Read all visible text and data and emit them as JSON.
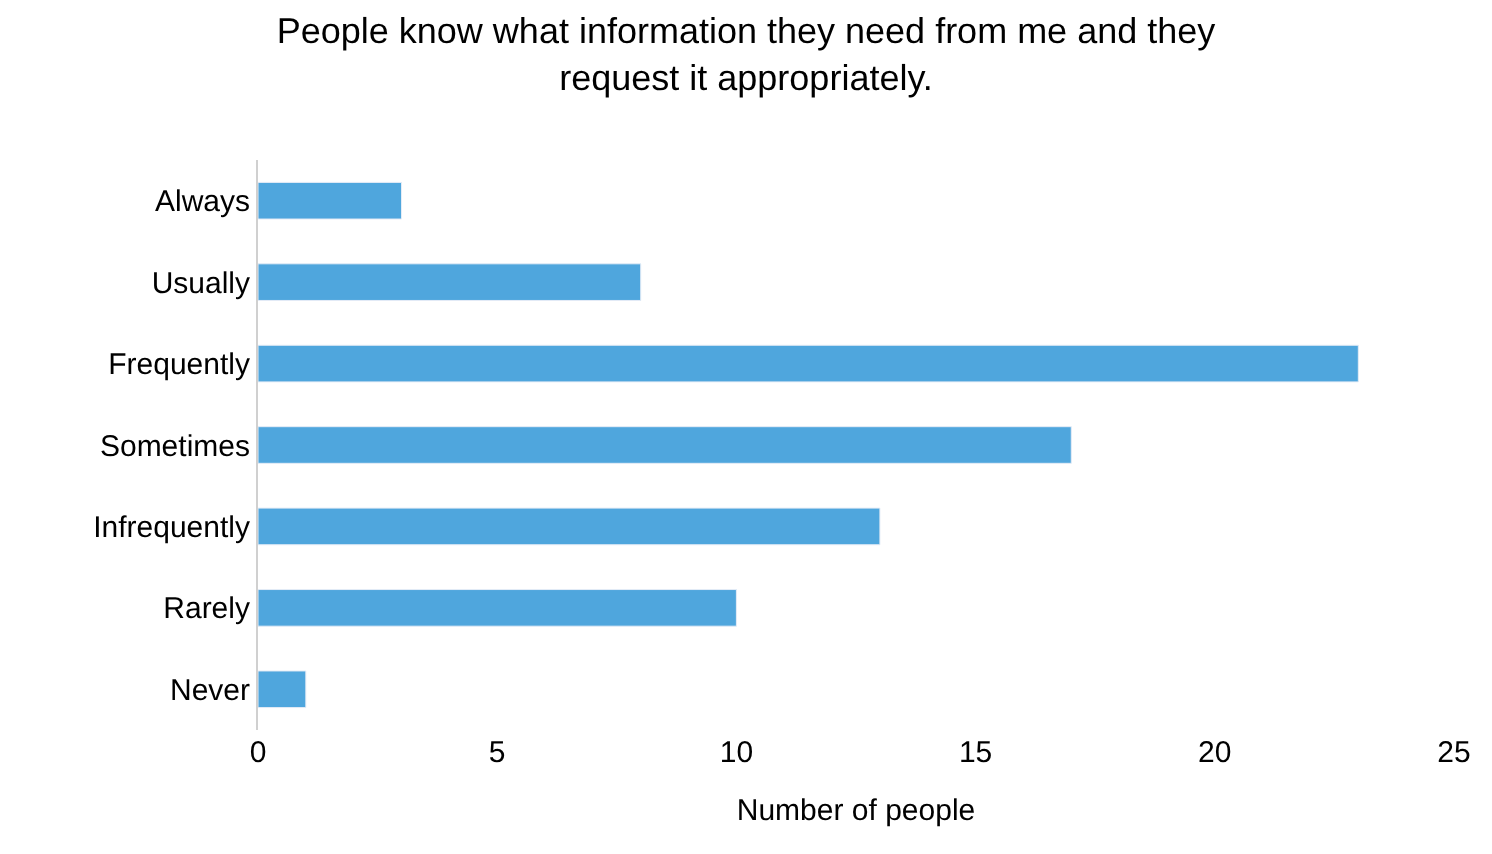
{
  "chart_data": {
    "type": "bar",
    "orientation": "horizontal",
    "title": "People know what information they need from me and they request it appropriately.",
    "xlabel": "Number of people",
    "categories": [
      "Always",
      "Usually",
      "Frequently",
      "Sometimes",
      "Infrequently",
      "Rarely",
      "Never"
    ],
    "values": [
      3,
      8,
      23,
      17,
      13,
      10,
      1
    ],
    "color": "#4fa6dd",
    "xlim": [
      0,
      25
    ],
    "xticks": [
      0,
      5,
      10,
      15,
      20,
      25
    ]
  }
}
